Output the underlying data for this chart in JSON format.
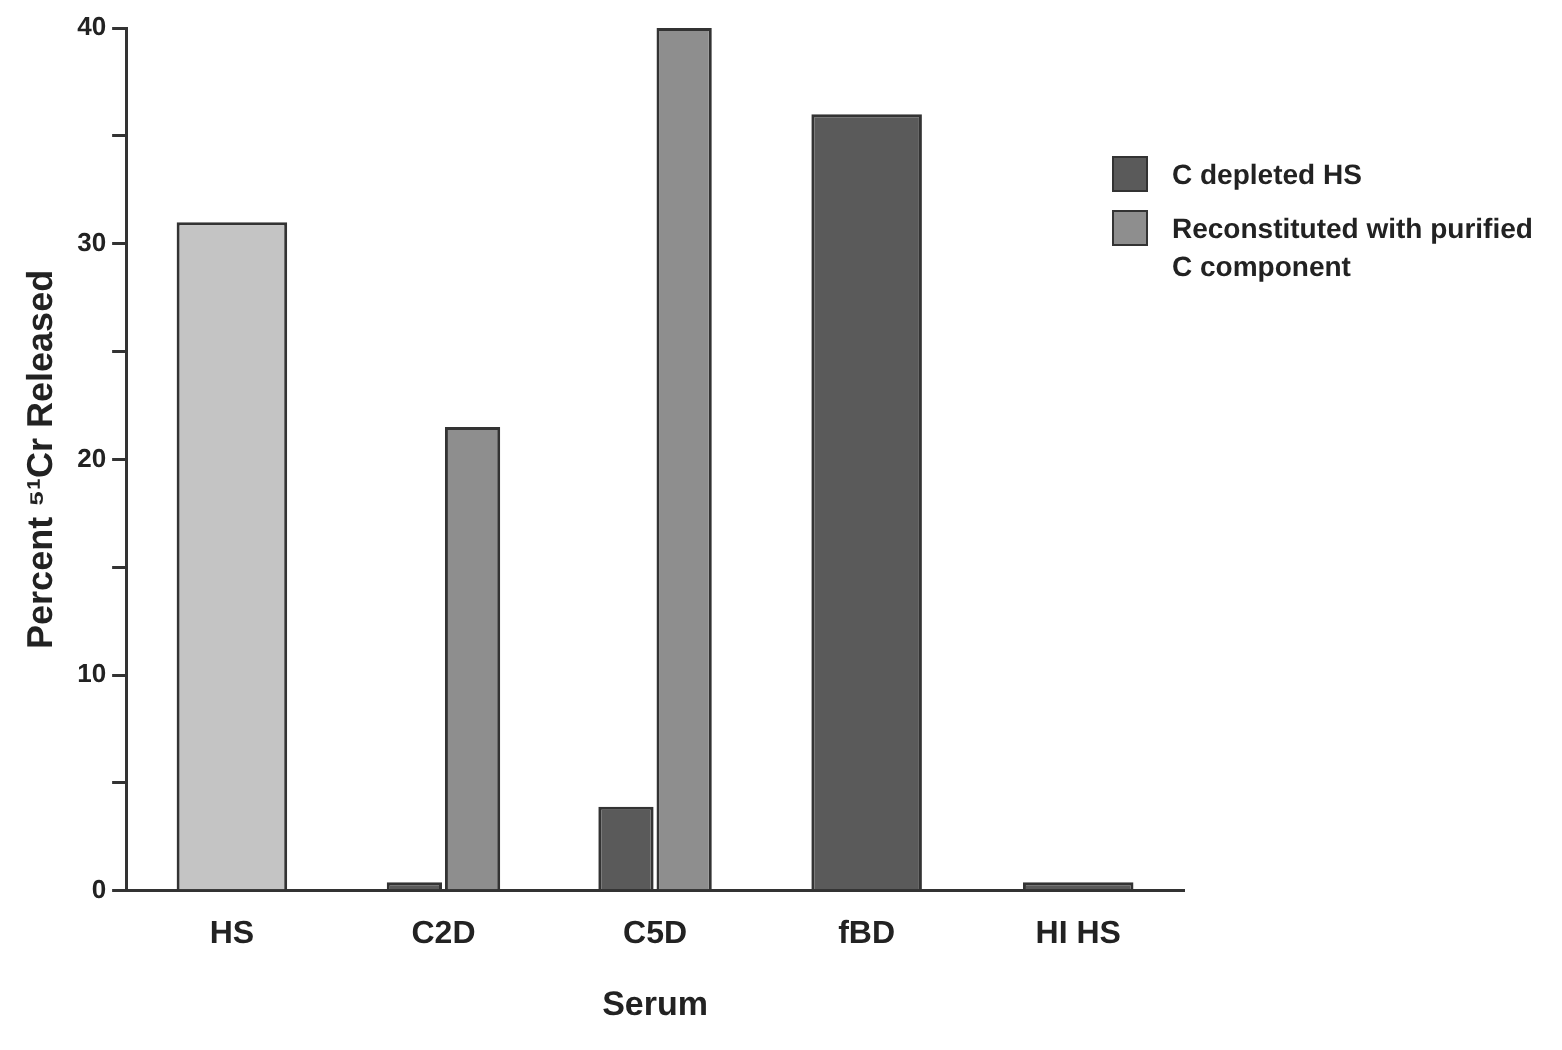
{
  "chart_data": {
    "type": "bar",
    "xlabel": "Serum",
    "ylabel": "Percent ⁵¹Cr Released",
    "categories": [
      "HS",
      "C2D",
      "C5D",
      "fBD",
      "HI HS"
    ],
    "series": [
      {
        "color": "#c4c4c4",
        "values": [
          31,
          null,
          null,
          null,
          null
        ]
      },
      {
        "name": "C depleted HS",
        "color": "#5a5a5a",
        "values": [
          null,
          0.4,
          3.9,
          36,
          0.4
        ]
      },
      {
        "name": "Reconstituted with purified C component",
        "color": "#8e8e8e",
        "values": [
          null,
          21.5,
          40,
          null,
          null
        ]
      }
    ],
    "ylim": [
      0,
      40
    ],
    "yticks": [
      0,
      {
        "value": 5,
        "label": null
      },
      10,
      {
        "value": 15,
        "label": null
      },
      20,
      {
        "value": 25,
        "label": null
      },
      30,
      {
        "value": 35,
        "label": null
      },
      40
    ],
    "grid": false,
    "legend": "top right"
  }
}
